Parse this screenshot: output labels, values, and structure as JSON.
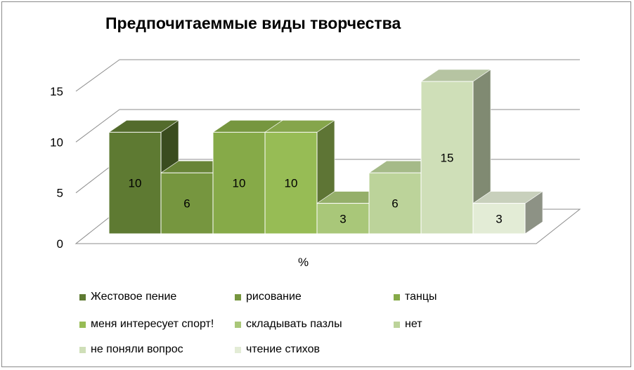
{
  "chart_data": {
    "type": "bar",
    "title": "Предпочитаеммые виды творчества",
    "xlabel": "%",
    "ylabel": "",
    "ylim": [
      0,
      15
    ],
    "yticks": [
      0,
      5,
      10,
      15
    ],
    "grid": true,
    "three_d": true,
    "legend_position": "bottom",
    "series": [
      {
        "name": "Жестовое пение",
        "value": 10,
        "label": "10",
        "color": "#5e7a32"
      },
      {
        "name": "рисование",
        "value": 6,
        "label": "6",
        "color": "#76963f"
      },
      {
        "name": "танцы",
        "value": 10,
        "label": "10",
        "color": "#86aa48"
      },
      {
        "name": "меня интересует спорт!",
        "value": 10,
        "label": "10",
        "color": "#97bc55"
      },
      {
        "name": "складывать пазлы",
        "value": 3,
        "label": "3",
        "color": "#a9c779"
      },
      {
        "name": "нет",
        "value": 6,
        "label": "6",
        "color": "#bcd39a"
      },
      {
        "name": "не поняли вопрос",
        "value": 15,
        "label": "15",
        "color": "#cfdfb8"
      },
      {
        "name": "чтение стихов",
        "value": 3,
        "label": "3",
        "color": "#e3ecd6"
      }
    ]
  }
}
